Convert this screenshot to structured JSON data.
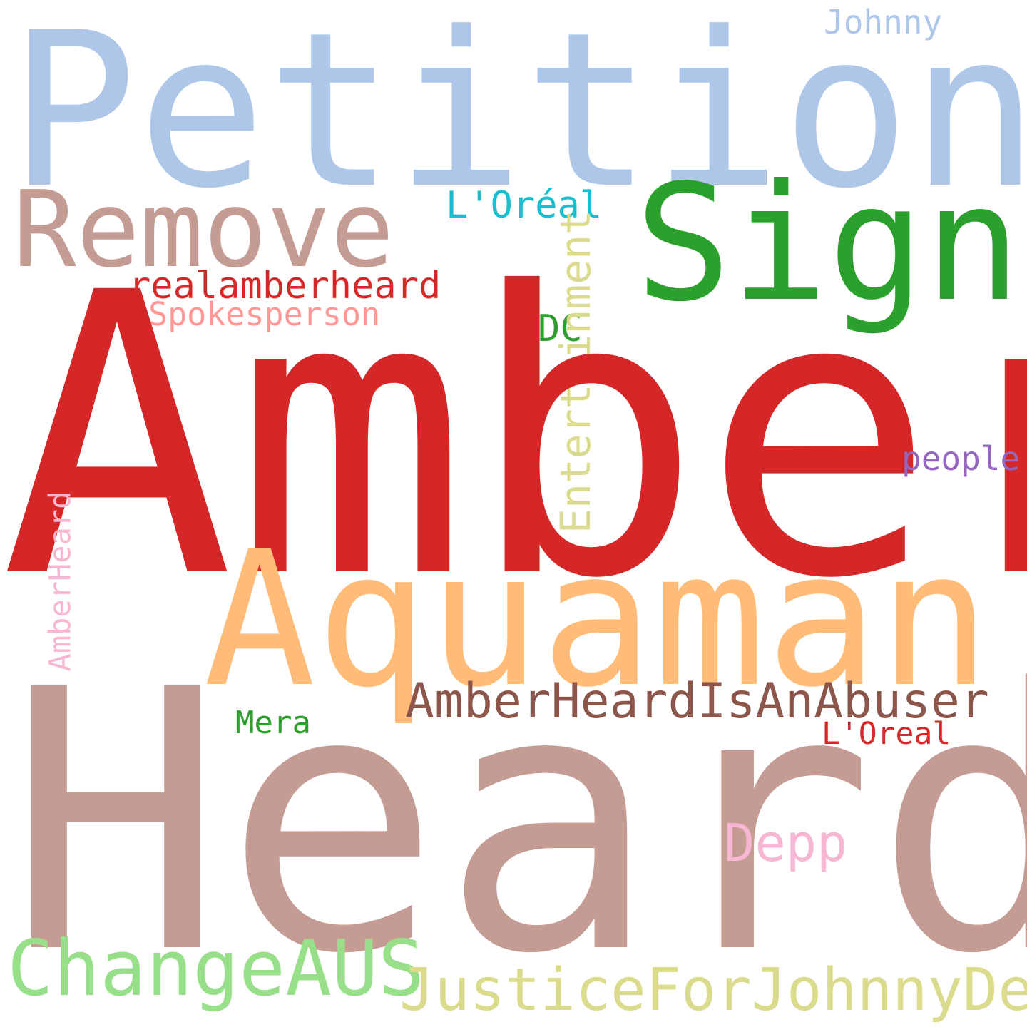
{
  "words": {
    "petition": {
      "text": "Petition",
      "color": "#aec7e8"
    },
    "remove": {
      "text": "Remove",
      "color": "#c49c94"
    },
    "sign": {
      "text": "Sign",
      "color": "#2ca02c"
    },
    "loreal_accent": {
      "text": "L'Oréal",
      "color": "#17becf"
    },
    "realamberheard": {
      "text": "realamberheard",
      "color": "#d62728"
    },
    "spokesperson": {
      "text": "Spokesperson",
      "color": "#ff9896"
    },
    "dc": {
      "text": "DC",
      "color": "#2ca02c"
    },
    "entertainment": {
      "text": "Entertainment",
      "color": "#dbdb8d"
    },
    "amber": {
      "text": "Amber",
      "color": "#d62728"
    },
    "people": {
      "text": "people",
      "color": "#9467bd"
    },
    "amberheard": {
      "text": "AmberHeard",
      "color": "#f7b6d2"
    },
    "aquaman": {
      "text": "Aquaman",
      "color": "#ffbb78"
    },
    "amberheardisanabuser": {
      "text": "AmberHeardIsAnAbuser",
      "color": "#8c564b"
    },
    "mera": {
      "text": "Mera",
      "color": "#2ca02c"
    },
    "loreal_plain": {
      "text": "L'Oreal",
      "color": "#d62728"
    },
    "heard": {
      "text": "Heard",
      "color": "#c49c94"
    },
    "depp": {
      "text": "Depp",
      "color": "#f7b6d2"
    },
    "changeaus": {
      "text": "ChangeAUS",
      "color": "#98df8a"
    },
    "justiceforjohnnydepp": {
      "text": "JusticeForJohnnyDepp",
      "color": "#dbdb8d"
    },
    "johnny": {
      "text": "Johnny",
      "color": "#aec7e8"
    }
  }
}
